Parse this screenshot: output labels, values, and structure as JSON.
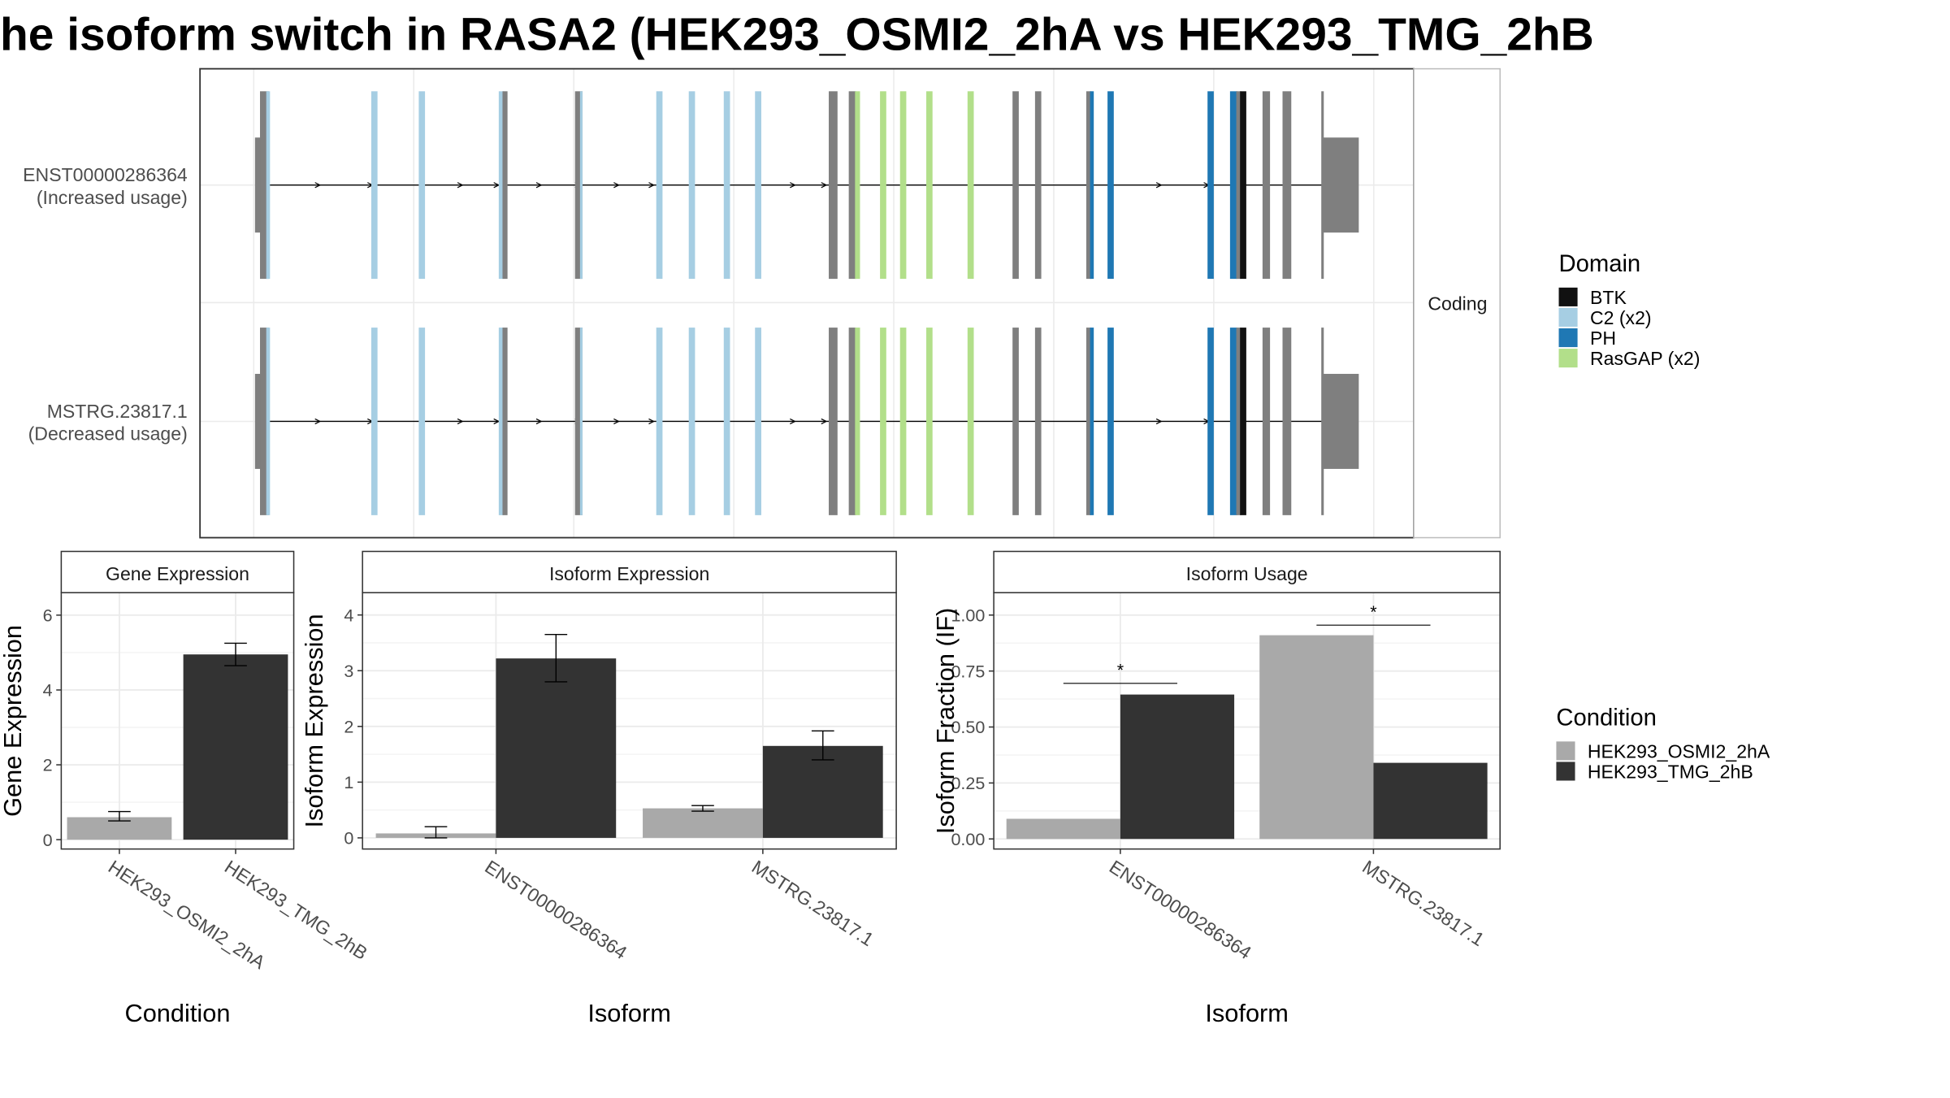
{
  "title": "he isoform switch in RASA2 (HEK293_OSMI2_2hA vs HEK293_TMG_2hB",
  "colors": {
    "BTK": "#111111",
    "C2 (x2)": "#a6cee3",
    "PH": "#1f78b4",
    "RasGAP (x2)": "#b2df8a",
    "exon": "#7f7f7f",
    "cond_a": "#a9a9a9",
    "cond_b": "#333333"
  },
  "chart_data": [
    {
      "type": "structure",
      "panel": "isoform-structure",
      "strip_label": "Coding",
      "isoforms": [
        {
          "id": "ENST00000286364",
          "label_line1": "ENST00000286364",
          "label_line2": "(Increased usage)"
        },
        {
          "id": "MSTRG.23817.1",
          "label_line1": "MSTRG.23817.1",
          "label_line2": "(Decreased usage)"
        }
      ],
      "legend": {
        "title": "Domain",
        "entries": [
          {
            "label": "BTK",
            "color": "#111111"
          },
          {
            "label": "C2 (x2)",
            "color": "#a6cee3"
          },
          {
            "label": "PH",
            "color": "#1f78b4"
          },
          {
            "label": "RasGAP (x2)",
            "color": "#b2df8a"
          }
        ]
      },
      "features": [
        {
          "kind": "utr",
          "start": 204,
          "end": 209
        },
        {
          "kind": "exon",
          "start": 208,
          "end": 215
        },
        {
          "kind": "C2 (x2)",
          "start": 213,
          "end": 216
        },
        {
          "kind": "C2 (x2)",
          "start": 297,
          "end": 302
        },
        {
          "kind": "C2 (x2)",
          "start": 335,
          "end": 340
        },
        {
          "kind": "C2 (x2)",
          "start": 399,
          "end": 403
        },
        {
          "kind": "exon",
          "start": 402,
          "end": 406
        },
        {
          "kind": "exon",
          "start": 460,
          "end": 466
        },
        {
          "kind": "C2 (x2)",
          "start": 464,
          "end": 466
        },
        {
          "kind": "C2 (x2)",
          "start": 525,
          "end": 530
        },
        {
          "kind": "C2 (x2)",
          "start": 551,
          "end": 556
        },
        {
          "kind": "C2 (x2)",
          "start": 579,
          "end": 584
        },
        {
          "kind": "C2 (x2)",
          "start": 604,
          "end": 609
        },
        {
          "kind": "exon",
          "start": 663,
          "end": 670
        },
        {
          "kind": "exon",
          "start": 679,
          "end": 685
        },
        {
          "kind": "RasGAP (x2)",
          "start": 684,
          "end": 688
        },
        {
          "kind": "RasGAP (x2)",
          "start": 704,
          "end": 709
        },
        {
          "kind": "RasGAP (x2)",
          "start": 720,
          "end": 725
        },
        {
          "kind": "RasGAP (x2)",
          "start": 741,
          "end": 746
        },
        {
          "kind": "RasGAP (x2)",
          "start": 774,
          "end": 779
        },
        {
          "kind": "exon",
          "start": 810,
          "end": 815
        },
        {
          "kind": "exon",
          "start": 828,
          "end": 833
        },
        {
          "kind": "exon",
          "start": 869,
          "end": 873
        },
        {
          "kind": "PH",
          "start": 872,
          "end": 875
        },
        {
          "kind": "PH",
          "start": 886,
          "end": 891
        },
        {
          "kind": "PH",
          "start": 966,
          "end": 971
        },
        {
          "kind": "PH",
          "start": 984,
          "end": 990
        },
        {
          "kind": "exon",
          "start": 989,
          "end": 993
        },
        {
          "kind": "BTK",
          "start": 992,
          "end": 997
        },
        {
          "kind": "exon",
          "start": 1010,
          "end": 1016
        },
        {
          "kind": "exon",
          "start": 1026,
          "end": 1033
        },
        {
          "kind": "exon",
          "start": 1057,
          "end": 1059
        },
        {
          "kind": "utr",
          "start": 1058,
          "end": 1087
        }
      ],
      "intron_start": 215,
      "intron_end": 1058,
      "arrows": [
        255,
        297,
        369,
        398,
        432,
        463,
        494,
        522,
        635,
        660,
        928,
        966
      ]
    },
    {
      "type": "bar",
      "panel": "gene-expression",
      "strip_title": "Gene Expression",
      "xlabel": "Condition",
      "ylabel": "Gene Expression",
      "ylim": [
        -0.25,
        6.6
      ],
      "yticks": [
        "0",
        "2",
        "4",
        "6"
      ],
      "categories": [
        "HEK293_OSMI2_2hA",
        "HEK293_TMG_2hB"
      ],
      "values": [
        0.6,
        4.95
      ],
      "error_low": [
        0.5,
        4.65
      ],
      "error_high": [
        0.75,
        5.25
      ]
    },
    {
      "type": "bar",
      "panel": "isoform-expression",
      "strip_title": "Isoform Expression",
      "xlabel": "Isoform",
      "ylabel": "Isoform Expression",
      "ylim": [
        -0.2,
        4.4
      ],
      "yticks": [
        "0",
        "1",
        "2",
        "3",
        "4"
      ],
      "categories": [
        "ENST00000286364",
        "MSTRG.23817.1"
      ],
      "series": [
        {
          "name": "HEK293_OSMI2_2hA",
          "values": [
            0.08,
            0.53
          ],
          "error_low": [
            0.0,
            0.48
          ],
          "error_high": [
            0.2,
            0.58
          ]
        },
        {
          "name": "HEK293_TMG_2hB",
          "values": [
            3.22,
            1.65
          ],
          "error_low": [
            2.8,
            1.4
          ],
          "error_high": [
            3.65,
            1.92
          ]
        }
      ]
    },
    {
      "type": "bar",
      "panel": "isoform-usage",
      "strip_title": "Isoform Usage",
      "xlabel": "Isoform",
      "ylabel": "Isoform Fraction (IF)",
      "ylim": [
        -0.045,
        1.1
      ],
      "yticks": [
        "0.00",
        "0.25",
        "0.50",
        "0.75",
        "1.00"
      ],
      "categories": [
        "ENST00000286364",
        "MSTRG.23817.1"
      ],
      "series": [
        {
          "name": "HEK293_OSMI2_2hA",
          "values": [
            0.09,
            0.91
          ]
        },
        {
          "name": "HEK293_TMG_2hB",
          "values": [
            0.645,
            0.34
          ]
        }
      ],
      "significance": [
        {
          "label": "*",
          "y": 0.695
        },
        {
          "label": "*",
          "y": 0.955
        }
      ]
    }
  ],
  "condition_legend": {
    "title": "Condition",
    "entries": [
      {
        "label": "HEK293_OSMI2_2hA",
        "color": "#a9a9a9"
      },
      {
        "label": "HEK293_TMG_2hB",
        "color": "#333333"
      }
    ]
  }
}
